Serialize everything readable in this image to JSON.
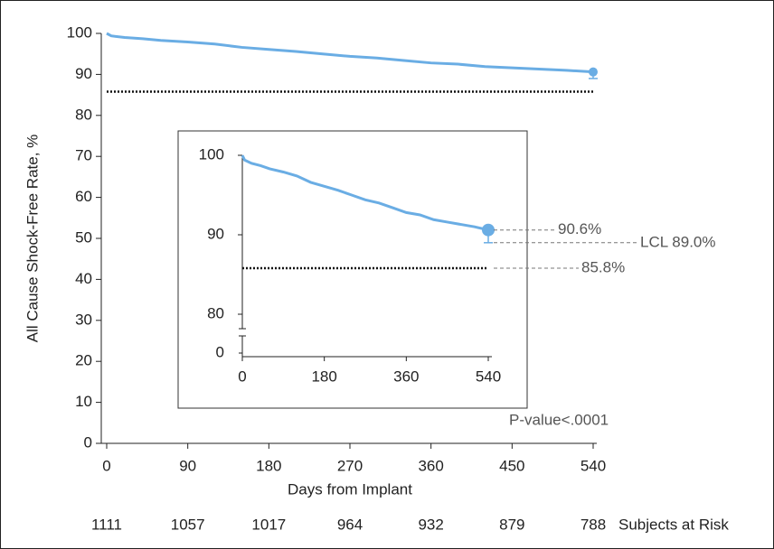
{
  "chart_data": [
    {
      "type": "line",
      "x_label": "Days from Implant",
      "y_label": "All Cause Shock-Free Rate, %",
      "xlim": [
        0,
        540
      ],
      "xticks": [
        0,
        90,
        180,
        270,
        360,
        450,
        540
      ],
      "ylim": [
        0,
        100
      ],
      "yticks": [
        0,
        10,
        20,
        30,
        40,
        50,
        60,
        70,
        80,
        90,
        100
      ],
      "x": [
        0,
        5,
        20,
        40,
        60,
        90,
        120,
        150,
        180,
        210,
        240,
        270,
        300,
        330,
        360,
        390,
        420,
        450,
        480,
        510,
        540
      ],
      "series": [
        {
          "color": "#6aade4",
          "values": [
            100,
            99.4,
            99,
            98.7,
            98.3,
            97.9,
            97.4,
            96.6,
            96.1,
            95.6,
            95,
            94.4,
            94,
            93.4,
            92.8,
            92.5,
            91.9,
            91.6,
            91.3,
            91,
            90.6
          ]
        }
      ],
      "endpoint": {
        "x": 540,
        "value": 90.6
      },
      "lcl": {
        "value": 89.0
      },
      "threshold": {
        "value": 85.8
      },
      "at_risk": {
        "label": "Subjects at Risk",
        "values": [
          1111,
          1057,
          1017,
          964,
          932,
          879,
          788
        ]
      }
    },
    {
      "type": "line",
      "xlim": [
        0,
        540
      ],
      "xticks": [
        0,
        180,
        360,
        540
      ],
      "ylim": [
        80,
        100
      ],
      "yticks": [
        80,
        90,
        100
      ],
      "broken_axis_yticks": [
        0
      ],
      "x": [
        0,
        5,
        20,
        40,
        60,
        90,
        120,
        150,
        180,
        210,
        240,
        270,
        300,
        330,
        360,
        390,
        420,
        450,
        480,
        510,
        540
      ],
      "series": [
        {
          "color": "#6aade4",
          "values": [
            100,
            99.4,
            99,
            98.7,
            98.3,
            97.9,
            97.4,
            96.6,
            96.1,
            95.6,
            95,
            94.4,
            94,
            93.4,
            92.8,
            92.5,
            91.9,
            91.6,
            91.3,
            91,
            90.6
          ]
        }
      ],
      "endpoint": {
        "x": 540,
        "value": 90.6,
        "label": "90.6%"
      },
      "lcl": {
        "value": 89.0,
        "label": "LCL 89.0%"
      },
      "threshold": {
        "value": 85.8,
        "label": "85.8%"
      },
      "annotation": "P-value<.0001"
    }
  ]
}
